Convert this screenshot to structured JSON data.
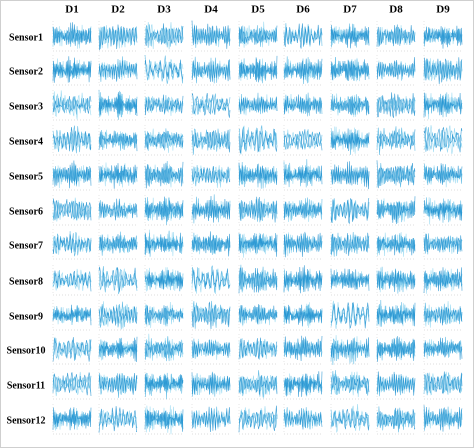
{
  "columns": [
    "D1",
    "D2",
    "D3",
    "D4",
    "D5",
    "D6",
    "D7",
    "D8",
    "D9"
  ],
  "rows": [
    "Sensor1",
    "Sensor2",
    "Sensor3",
    "Sensor4",
    "Sensor5",
    "Sensor6",
    "Sensor7",
    "Sensor8",
    "Sensor9",
    "Sensor10",
    "Sensor11",
    "Sensor12"
  ]
}
